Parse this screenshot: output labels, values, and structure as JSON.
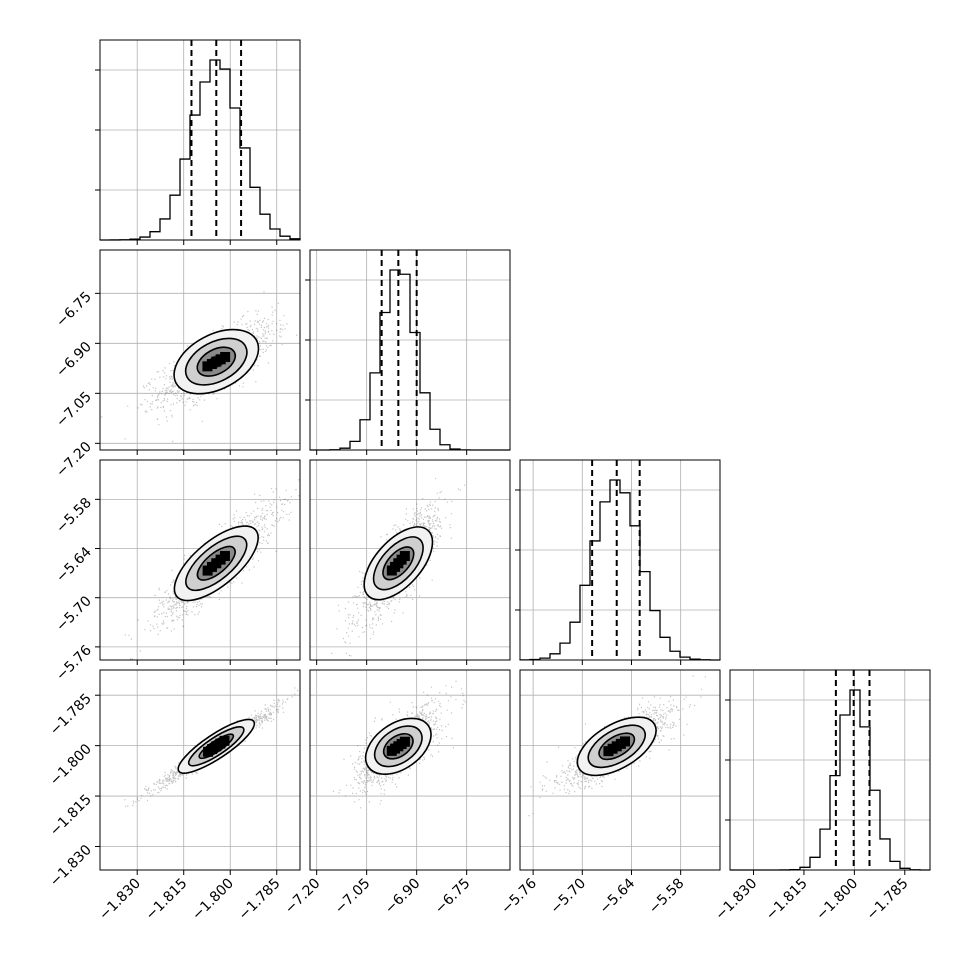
{
  "chart_data": {
    "type": "corner",
    "parameters": [
      {
        "name": "",
        "median": -1.8045,
        "q16": -1.8125,
        "q84": -1.7965,
        "range": [
          -1.842,
          -1.7775
        ],
        "ticks": [
          -1.83,
          -1.815,
          -1.8,
          -1.785
        ],
        "tick_labels": [
          "−1.830",
          "−1.815",
          "−1.800",
          "−1.785"
        ]
      },
      {
        "name": "",
        "median": -6.955,
        "q16": -7.005,
        "q84": -6.9,
        "range": [
          -7.22,
          -6.62
        ],
        "ticks": [
          -7.2,
          -7.05,
          -6.9,
          -6.75
        ],
        "tick_labels": [
          "−7.20",
          "−7.05",
          "−6.90",
          "−6.75"
        ]
      },
      {
        "name": "",
        "median": -5.658,
        "q16": -5.688,
        "q84": -5.63,
        "range": [
          -5.776,
          -5.532
        ],
        "ticks": [
          -5.76,
          -5.7,
          -5.64,
          -5.58
        ],
        "tick_labels": [
          "−5.76",
          "−5.70",
          "−5.64",
          "−5.58"
        ]
      },
      {
        "name": "",
        "median": -1.8002,
        "q16": -1.8055,
        "q84": -1.7955,
        "range": [
          -1.837,
          -1.7775
        ],
        "ticks": [
          -1.83,
          -1.815,
          -1.8,
          -1.785
        ],
        "tick_labels": [
          "−1.830",
          "−1.815",
          "−1.800",
          "−1.785"
        ]
      }
    ],
    "correlations": [
      [
        0,
        1,
        0.75
      ],
      [
        0,
        2,
        0.88
      ],
      [
        0,
        3,
        0.98
      ],
      [
        1,
        2,
        0.82
      ],
      [
        1,
        3,
        0.72
      ],
      [
        2,
        3,
        0.83
      ]
    ],
    "grid": true,
    "colors": {
      "axes": "#000000",
      "grid": "#b0b0b0",
      "points": "#555555",
      "hist": "#000000"
    }
  }
}
